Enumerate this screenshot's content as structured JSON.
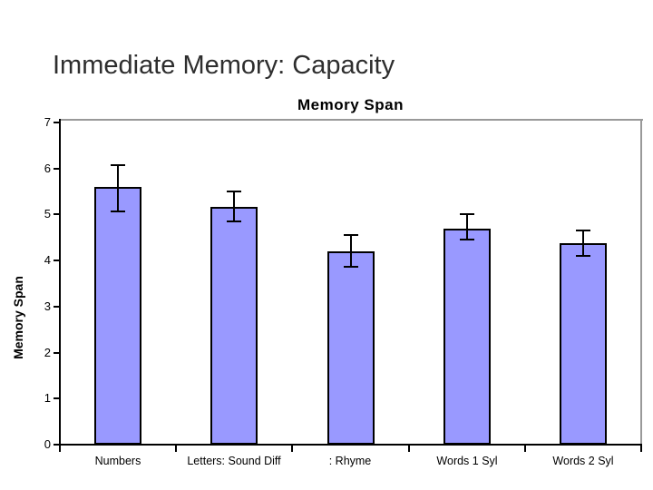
{
  "slide": {
    "title": "Immediate Memory: Capacity"
  },
  "chart_data": {
    "type": "bar",
    "title": "Memory Span",
    "xlabel": "",
    "ylabel": "Memory Span",
    "ylim": [
      0,
      7
    ],
    "ytick_step": 1,
    "ytick_labels": [
      "0",
      "1",
      "2",
      "3",
      "4",
      "5",
      "6",
      "7"
    ],
    "categories": [
      "Numbers",
      "Letters: Sound Diff",
      ": Rhyme",
      "Words 1 Syl",
      "Words 2 Syl"
    ],
    "series": [
      {
        "name": "Memory Span",
        "values": [
          5.6,
          5.17,
          4.2,
          4.7,
          4.38
        ]
      }
    ],
    "error_bars": {
      "upper": [
        6.08,
        5.5,
        4.56,
        5.0,
        4.66
      ],
      "lower": [
        5.07,
        4.85,
        3.86,
        4.46,
        4.1
      ]
    },
    "legend_position": "none",
    "grid": false,
    "colors": {
      "bar_fill": "#9999FF",
      "bar_border": "#000000",
      "error_bar": "#000000",
      "axis": "#000000",
      "plot_border": "#999999",
      "text": "#000000",
      "background": "#FFFFFF"
    }
  }
}
